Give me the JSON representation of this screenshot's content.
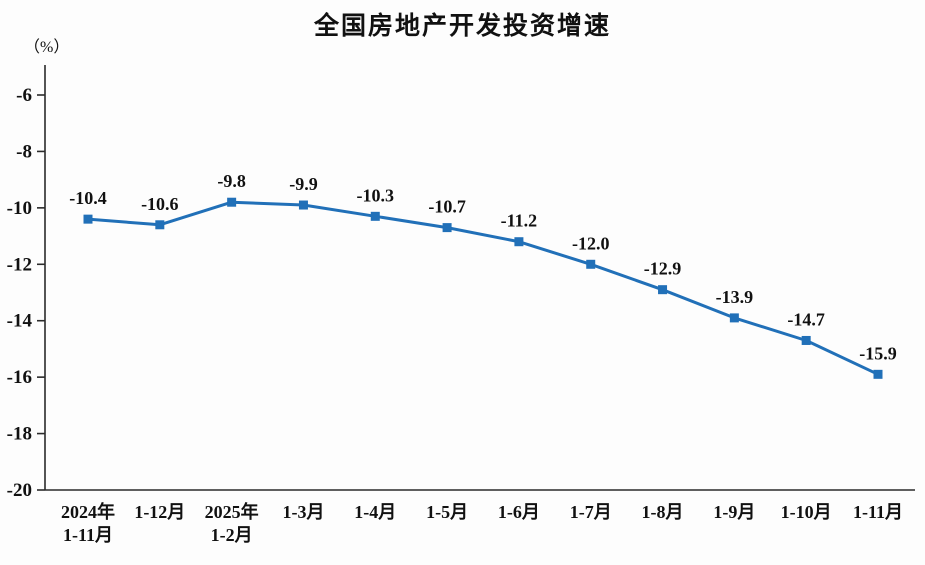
{
  "chart_data": {
    "type": "line",
    "title": "全国房地产开发投资增速",
    "unit_label": "（%）",
    "categories": [
      "2024年\n1-11月",
      "1-12月",
      "2025年\n1-2月",
      "1-3月",
      "1-4月",
      "1-5月",
      "1-6月",
      "1-7月",
      "1-8月",
      "1-9月",
      "1-10月",
      "1-11月"
    ],
    "values": [
      -10.4,
      -10.6,
      -9.8,
      -9.9,
      -10.3,
      -10.7,
      -11.2,
      -12.0,
      -12.9,
      -13.9,
      -14.7,
      -15.9
    ],
    "labels": [
      "-10.4",
      "-10.6",
      "-9.8",
      "-9.9",
      "-10.3",
      "-10.7",
      "-11.2",
      "-12.0",
      "-12.9",
      "-13.9",
      "-14.7",
      "-15.9"
    ],
    "xlabel": "",
    "ylabel": "（%）",
    "ylim": [
      -20,
      -6
    ],
    "yticks": [
      -6,
      -8,
      -10,
      -12,
      -14,
      -16,
      -18,
      -20
    ],
    "grid": false,
    "legend_position": "none",
    "line_color": "#2170B8",
    "marker": "square",
    "axis_color": "#2b2b2b",
    "text_color": "#111111"
  }
}
